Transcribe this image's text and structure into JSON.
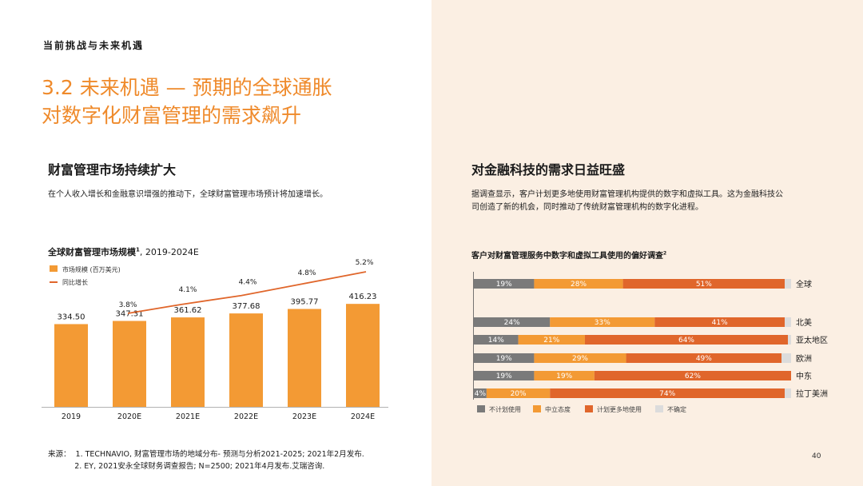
{
  "header": {
    "section_tag": "当前挑战与未来机遇",
    "title_line1": "3.2 未来机遇 — 预期的全球通胀",
    "title_line2": "对数字化财富管理的需求飙升"
  },
  "left": {
    "heading": "财富管理市场持续扩大",
    "paragraph": "在个人收入增长和金融意识增强的推动下，全球财富管理市场预计将加速增长。",
    "chart_title_main": "全球财富管理市场规模",
    "chart_title_sup": "1",
    "chart_title_tail": ", 2019-2024E"
  },
  "right": {
    "heading": "对金融科技的需求日益旺盛",
    "paragraph_line1": "据调查显示，客户计划更多地使用财富管理机构提供的数字和虚拟工具。这为金融科技公",
    "paragraph_line2": "司创造了新的机会，同时推动了传统财富管理机构的数字化进程。",
    "chart_title_main": "客户对财富管理服务中数字和虚拟工具使用的偏好调查",
    "chart_title_sup": "2"
  },
  "chart_data": [
    {
      "type": "bar",
      "title": "全球财富管理市场规模, 2019-2024E",
      "categories": [
        "2019",
        "2020E",
        "2021E",
        "2022E",
        "2023E",
        "2024E"
      ],
      "series": [
        {
          "name": "市场规模 (百万美元)",
          "values": [
            334.5,
            347.31,
            361.62,
            377.68,
            395.77,
            416.23
          ],
          "labels": [
            "334.50",
            "347.31",
            "361.62",
            "377.68",
            "395.77",
            "416.23"
          ],
          "color": "#f39a34"
        },
        {
          "name": "同比增长",
          "type": "line",
          "values": [
            3.8,
            4.1,
            4.4,
            4.8,
            5.2
          ],
          "x": [
            "2020E",
            "2021E",
            "2022E",
            "2023E",
            "2024E"
          ],
          "labels": [
            "3.8%",
            "4.1%",
            "4.4%",
            "4.8%",
            "5.2%"
          ],
          "color": "#e0662b"
        }
      ],
      "ylim": [
        0,
        420
      ],
      "grid": false,
      "legend": "top-left"
    },
    {
      "type": "bar",
      "title": "客户对财富管理服务中数字和虚拟工具使用的偏好调查",
      "orientation": "horizontal-stacked",
      "categories": [
        "全球",
        "北美",
        "亚太地区",
        "欧洲",
        "中东",
        "拉丁美洲"
      ],
      "series": [
        {
          "name": "不计划使用",
          "values": [
            19,
            24,
            14,
            19,
            19,
            4
          ],
          "labels": [
            "19%",
            "24%",
            "14%",
            "19%",
            "19%",
            "4%"
          ],
          "color": "#7a7a7a"
        },
        {
          "name": "中立态度",
          "values": [
            28,
            33,
            21,
            29,
            19,
            20
          ],
          "labels": [
            "28%",
            "33%",
            "21%",
            "29%",
            "19%",
            "20%"
          ],
          "color": "#f39a34"
        },
        {
          "name": "计划更多地使用",
          "values": [
            51,
            41,
            64,
            49,
            62,
            74
          ],
          "labels": [
            "51%",
            "41%",
            "64%",
            "49%",
            "62%",
            "74%"
          ],
          "color": "#e0662b"
        },
        {
          "name": "不确定",
          "values": [
            2,
            2,
            1,
            3,
            0,
            2
          ],
          "color": "#dcdcdc"
        }
      ],
      "xlim": [
        0,
        100
      ],
      "legend": "bottom"
    }
  ],
  "footer": {
    "source_line1": "来源：  1. TECHNAVIO, 财富管理市场的地域分布- 预测与分析2021-2025; 2021年2月发布.",
    "source_line2": "           2. EY, 2021安永全球财务调查报告; N=2500; 2021年4月发布.艾瑞咨询.",
    "page_number": "40"
  }
}
